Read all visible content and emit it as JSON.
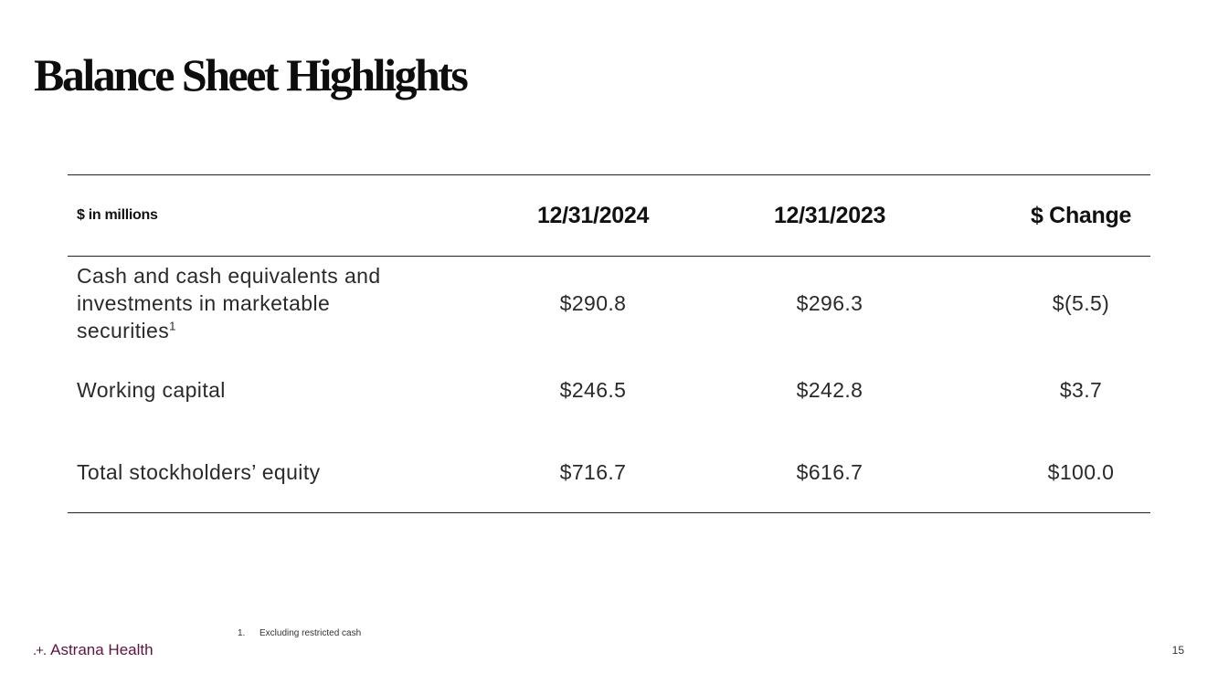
{
  "slide": {
    "title": "Balance Sheet Highlights",
    "page_number": "15"
  },
  "table": {
    "header": {
      "units": "$ in millions",
      "col_a": "12/31/2024",
      "col_b": "12/31/2023",
      "col_c": "$ Change"
    },
    "rows": [
      {
        "label": "Cash and cash equivalents and investments in marketable securities",
        "footnote_ref": "1",
        "col_a": "$290.8",
        "col_b": "$296.3",
        "col_c": "$(5.5)"
      },
      {
        "label": "Working capital",
        "col_a": "$246.5",
        "col_b": "$242.8",
        "col_c": "$3.7"
      },
      {
        "label": "Total stockholders’ equity",
        "col_a": "$716.7",
        "col_b": "$616.7",
        "col_c": "$100.0"
      }
    ]
  },
  "footnote": {
    "number": "1.",
    "text": "Excluding restricted cash"
  },
  "brand": {
    "name": "Astrana Health",
    "mark": ".+.",
    "color": "#5c1540"
  }
}
